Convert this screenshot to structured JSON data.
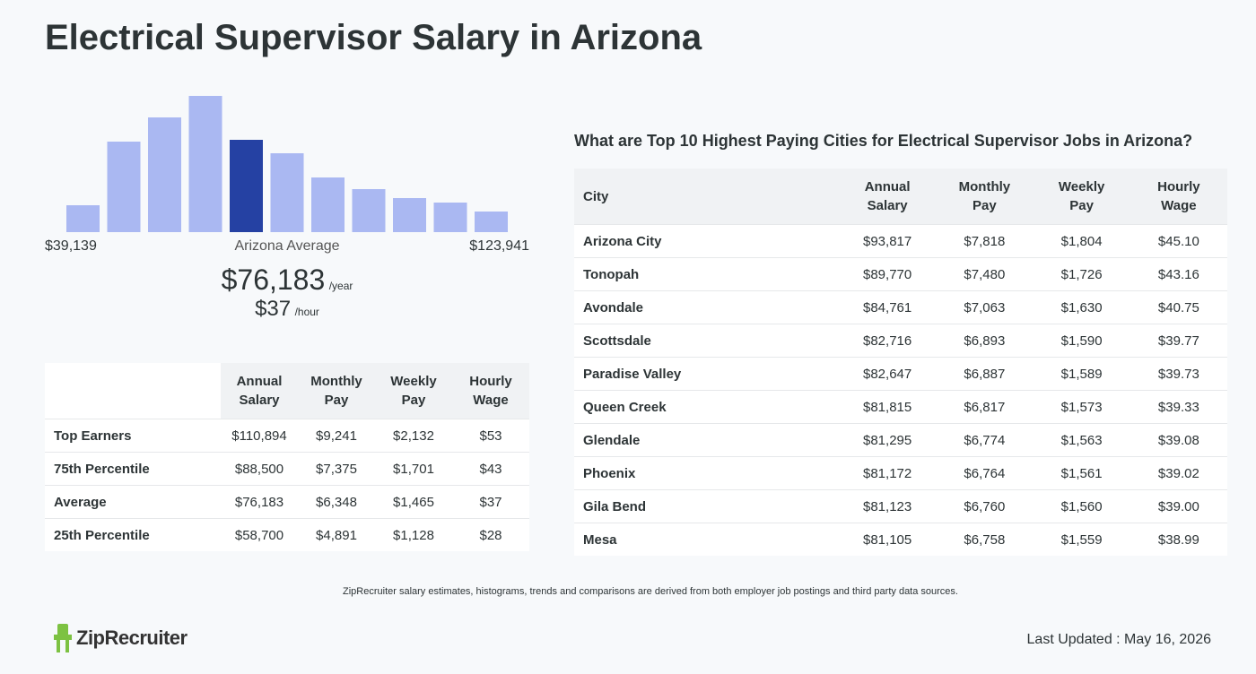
{
  "header": {
    "title": "Electrical Supervisor Salary in Arizona"
  },
  "histogram": {
    "values": [
      30,
      101,
      128,
      152,
      103,
      88,
      61,
      48,
      38,
      33,
      23
    ],
    "highlight_index": 4,
    "color": "#aab8f2",
    "highlight_color": "#2541a3"
  },
  "range": {
    "min": "$39,139",
    "center": "Arizona Average",
    "max": "$123,941"
  },
  "average": {
    "annual": "$76,183",
    "annual_unit": "/year",
    "hourly": "$37",
    "hourly_unit": "/hour"
  },
  "percentile_table": {
    "columns": [
      "Annual Salary",
      "Monthly Pay",
      "Weekly Pay",
      "Hourly Wage"
    ],
    "rows": [
      [
        "Top Earners",
        "$110,894",
        "$9,241",
        "$2,132",
        "$53"
      ],
      [
        "75th Percentile",
        "$88,500",
        "$7,375",
        "$1,701",
        "$43"
      ],
      [
        "Average",
        "$76,183",
        "$6,348",
        "$1,465",
        "$37"
      ],
      [
        "25th Percentile",
        "$58,700",
        "$4,891",
        "$1,128",
        "$28"
      ]
    ]
  },
  "cities_table": {
    "title": "What are Top 10 Highest Paying Cities for Electrical Supervisor Jobs in Arizona?",
    "columns": [
      "City",
      "Annual Salary",
      "Monthly Pay",
      "Weekly Pay",
      "Hourly Wage"
    ],
    "rows": [
      [
        "Arizona City",
        "$93,817",
        "$7,818",
        "$1,804",
        "$45.10"
      ],
      [
        "Tonopah",
        "$89,770",
        "$7,480",
        "$1,726",
        "$43.16"
      ],
      [
        "Avondale",
        "$84,761",
        "$7,063",
        "$1,630",
        "$40.75"
      ],
      [
        "Scottsdale",
        "$82,716",
        "$6,893",
        "$1,590",
        "$39.77"
      ],
      [
        "Paradise Valley",
        "$82,647",
        "$6,887",
        "$1,589",
        "$39.73"
      ],
      [
        "Queen Creek",
        "$81,815",
        "$6,817",
        "$1,573",
        "$39.33"
      ],
      [
        "Glendale",
        "$81,295",
        "$6,774",
        "$1,563",
        "$39.08"
      ],
      [
        "Phoenix",
        "$81,172",
        "$6,764",
        "$1,561",
        "$39.02"
      ],
      [
        "Gila Bend",
        "$81,123",
        "$6,760",
        "$1,560",
        "$39.00"
      ],
      [
        "Mesa",
        "$81,105",
        "$6,758",
        "$1,559",
        "$38.99"
      ]
    ]
  },
  "footer": {
    "note": "ZipRecruiter salary estimates, histograms, trends and comparisons are derived from both employer job postings and third party data sources.",
    "logo": "ZipRecruiter",
    "last_updated": "Last Updated : May 16, 2026"
  }
}
